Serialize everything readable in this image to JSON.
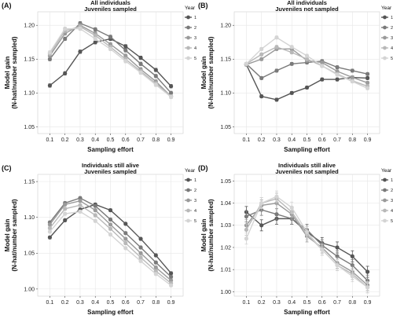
{
  "chart_data": [
    {
      "panel": "(A)",
      "type": "line",
      "title": [
        "All individuals",
        "Juveniles sampled"
      ],
      "xlabel": "Sampling effort",
      "ylabel": [
        "Model gain",
        "(N-hat/number sampled)"
      ],
      "x": [
        0.1,
        0.2,
        0.3,
        0.4,
        0.5,
        0.6,
        0.7,
        0.8,
        0.9
      ],
      "xticks": [
        "0.1",
        "0.2",
        "0.3",
        "0.4",
        "0.5",
        "0.6",
        "0.7",
        "0.8",
        "0.9"
      ],
      "yticks": [
        "1.05",
        "1.10",
        "1.15",
        "1.20"
      ],
      "ylim": [
        1.04,
        1.22
      ],
      "grid": true,
      "legend_title": "Year",
      "legend_position": "right",
      "series": [
        {
          "name": "1",
          "values": [
            1.111,
            1.129,
            1.161,
            1.175,
            1.18,
            1.169,
            1.152,
            1.134,
            1.11
          ]
        },
        {
          "name": "2",
          "values": [
            1.15,
            1.18,
            1.203,
            1.194,
            1.183,
            1.163,
            1.143,
            1.125,
            1.1
          ]
        },
        {
          "name": "3",
          "values": [
            1.155,
            1.188,
            1.2,
            1.188,
            1.172,
            1.155,
            1.135,
            1.117,
            1.095
          ]
        },
        {
          "name": "4",
          "values": [
            1.158,
            1.192,
            1.198,
            1.185,
            1.168,
            1.15,
            1.132,
            1.114,
            1.095
          ]
        },
        {
          "name": "5",
          "values": [
            1.16,
            1.195,
            1.195,
            1.18,
            1.165,
            1.147,
            1.13,
            1.112,
            1.094
          ]
        }
      ]
    },
    {
      "panel": "(B)",
      "type": "line",
      "title": [
        "All individuals",
        "Juveniles not sampled"
      ],
      "xlabel": "Sampling effort",
      "ylabel": [
        "Model gain",
        "(N-hat/number sampled)"
      ],
      "x": [
        0.1,
        0.2,
        0.3,
        0.4,
        0.5,
        0.6,
        0.7,
        0.8,
        0.9
      ],
      "xticks": [
        "0.1",
        "0.2",
        "0.3",
        "0.4",
        "0.5",
        "0.6",
        "0.7",
        "0.8",
        "0.9"
      ],
      "yticks": [
        "1.05",
        "1.10",
        "1.15",
        "1.20"
      ],
      "ylim": [
        1.04,
        1.22
      ],
      "grid": true,
      "legend_title": "Year",
      "legend_position": "right",
      "series": [
        {
          "name": "1",
          "values": [
            1.142,
            1.095,
            1.09,
            1.1,
            1.108,
            1.12,
            1.12,
            1.123,
            1.122
          ]
        },
        {
          "name": "2",
          "values": [
            1.143,
            1.122,
            1.133,
            1.143,
            1.145,
            1.147,
            1.138,
            1.133,
            1.128
          ]
        },
        {
          "name": "3",
          "values": [
            1.142,
            1.15,
            1.165,
            1.165,
            1.148,
            1.145,
            1.132,
            1.123,
            1.115
          ]
        },
        {
          "name": "4",
          "values": [
            1.143,
            1.157,
            1.168,
            1.16,
            1.15,
            1.14,
            1.128,
            1.118,
            1.11
          ]
        },
        {
          "name": "5",
          "values": [
            1.143,
            1.165,
            1.182,
            1.168,
            1.155,
            1.14,
            1.127,
            1.117,
            1.107
          ]
        }
      ]
    },
    {
      "panel": "(C)",
      "type": "line",
      "title": [
        "Individuals still alive",
        "Juveniles sampled"
      ],
      "xlabel": "Sampling effort",
      "ylabel": [
        "Model gain",
        "(N-hat/number sampled)"
      ],
      "x": [
        0.1,
        0.2,
        0.3,
        0.4,
        0.5,
        0.6,
        0.7,
        0.8,
        0.9
      ],
      "xticks": [
        "0.1",
        "0.2",
        "0.3",
        "0.4",
        "0.5",
        "0.6",
        "0.7",
        "0.8",
        "0.9"
      ],
      "yticks": [
        "1.00",
        "1.05",
        "1.10",
        "1.15"
      ],
      "ylim": [
        0.99,
        1.16
      ],
      "grid": true,
      "legend_title": "Year",
      "legend_position": "right",
      "series": [
        {
          "name": "1",
          "values": [
            1.072,
            1.096,
            1.111,
            1.118,
            1.11,
            1.091,
            1.07,
            1.047,
            1.022
          ]
        },
        {
          "name": "2",
          "values": [
            1.093,
            1.12,
            1.127,
            1.116,
            1.097,
            1.078,
            1.058,
            1.037,
            1.017
          ]
        },
        {
          "name": "3",
          "values": [
            1.09,
            1.118,
            1.123,
            1.11,
            1.09,
            1.07,
            1.05,
            1.03,
            1.012
          ]
        },
        {
          "name": "4",
          "values": [
            1.085,
            1.112,
            1.117,
            1.103,
            1.084,
            1.064,
            1.044,
            1.025,
            1.008
          ]
        },
        {
          "name": "5",
          "values": [
            1.08,
            1.105,
            1.108,
            1.095,
            1.076,
            1.057,
            1.039,
            1.021,
            1.005
          ]
        }
      ]
    },
    {
      "panel": "(D)",
      "type": "line",
      "title": [
        "Individuals still alive",
        "Juveniles not sampled"
      ],
      "xlabel": "Sampling effort",
      "ylabel": [
        "Model gain",
        "(N-hat/number sampled)"
      ],
      "x": [
        0.1,
        0.2,
        0.3,
        0.4,
        0.5,
        0.6,
        0.7,
        0.8,
        0.9
      ],
      "xticks": [
        "0.1",
        "0.2",
        "0.3",
        "0.4",
        "0.5",
        "0.6",
        "0.7",
        "0.8",
        "0.9"
      ],
      "yticks": [
        "1.00",
        "1.01",
        "1.02",
        "1.03",
        "1.04",
        "1.05"
      ],
      "ylim": [
        0.998,
        1.053
      ],
      "grid": true,
      "legend_title": "Year",
      "legend_position": "right",
      "series": [
        {
          "name": "1",
          "values": [
            1.036,
            1.03,
            1.033,
            1.033,
            1.027,
            1.022,
            1.02,
            1.016,
            1.009
          ]
        },
        {
          "name": "2",
          "values": [
            1.034,
            1.037,
            1.035,
            1.033,
            1.028,
            1.021,
            1.016,
            1.012,
            1.005
          ]
        },
        {
          "name": "3",
          "values": [
            1.03,
            1.039,
            1.04,
            1.035,
            1.025,
            1.02,
            1.013,
            1.009,
            1.003
          ]
        },
        {
          "name": "4",
          "values": [
            1.028,
            1.04,
            1.042,
            1.036,
            1.026,
            1.019,
            1.012,
            1.008,
            1.002
          ]
        },
        {
          "name": "5",
          "values": [
            1.024,
            1.04,
            1.043,
            1.038,
            1.027,
            1.019,
            1.012,
            1.007,
            1.002
          ]
        }
      ]
    }
  ],
  "series_colors": [
    "#555555",
    "#7a7a7a",
    "#9a9a9a",
    "#b8b8b8",
    "#d4d4d4"
  ],
  "plot_background": "#ffffff",
  "grid_color": "#e6e6e6"
}
